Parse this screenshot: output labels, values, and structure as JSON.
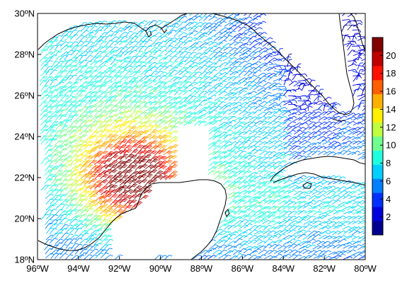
{
  "map": {
    "type": "wind-barb-map",
    "region": "Gulf of Mexico",
    "lon_range": [
      -96,
      -80
    ],
    "lat_range": [
      18,
      30
    ],
    "x_ticks": [
      {
        "lon": -96,
        "label": "96ºW"
      },
      {
        "lon": -94,
        "label": "94ºW"
      },
      {
        "lon": -92,
        "label": "92ºW"
      },
      {
        "lon": -90,
        "label": "90ºW"
      },
      {
        "lon": -88,
        "label": "88ºW"
      },
      {
        "lon": -86,
        "label": "86ºW"
      },
      {
        "lon": -84,
        "label": "84ºW"
      },
      {
        "lon": -82,
        "label": "82ºW"
      },
      {
        "lon": -80,
        "label": "80ºW"
      }
    ],
    "y_ticks": [
      {
        "lat": 30,
        "label": "30ºN"
      },
      {
        "lat": 28,
        "label": "28ºN"
      },
      {
        "lat": 26,
        "label": "26ºN"
      },
      {
        "lat": 24,
        "label": "24ºN"
      },
      {
        "lat": 22,
        "label": "22ºN"
      },
      {
        "lat": 20,
        "label": "20ºN"
      },
      {
        "lat": 18,
        "label": "18ºN"
      }
    ],
    "coast_color": "#000000",
    "wind_max_center": {
      "lon": -91.5,
      "lat": 21.8,
      "speed": 20
    },
    "swath_gap": {
      "lon_from": -89.5,
      "lon_to": -87.8
    }
  },
  "colorbar": {
    "min": 0,
    "max": 22,
    "tick_values": [
      2,
      4,
      6,
      8,
      10,
      12,
      14,
      16,
      18,
      20
    ],
    "tick_labels": [
      "2",
      "4",
      "6",
      "8",
      "10",
      "12",
      "14",
      "16",
      "18",
      "20"
    ],
    "colors": [
      "#00008f",
      "#0000df",
      "#0030ff",
      "#0080ff",
      "#00cfff",
      "#1fffdf",
      "#70ff8f",
      "#bfff40",
      "#ffef00",
      "#ffaf00",
      "#ff5f00",
      "#ff1000",
      "#bf0000",
      "#800000"
    ]
  }
}
